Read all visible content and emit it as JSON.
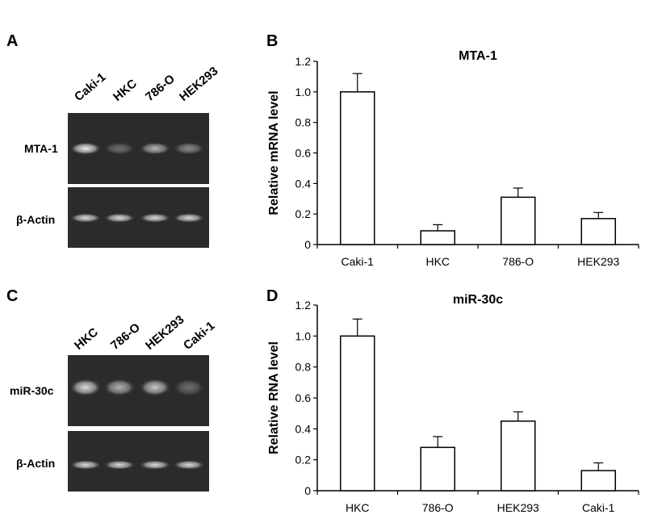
{
  "panels": {
    "A": {
      "letter": "A",
      "lanes": [
        "Caki-1",
        "HKC",
        "786-O",
        "HEK293"
      ],
      "gel_rows": [
        "MTA-1",
        "β-Actin"
      ]
    },
    "C": {
      "letter": "C",
      "lanes": [
        "HKC",
        "786-O",
        "HEK293",
        "Caki-1"
      ],
      "gel_rows": [
        "miR-30c",
        "β-Actin"
      ]
    },
    "B": {
      "letter": "B"
    },
    "D": {
      "letter": "D"
    }
  },
  "chart_data": [
    {
      "id": "B",
      "type": "bar",
      "title": "MTA-1",
      "ylabel": "Relative mRNA level",
      "xlabel": "",
      "categories": [
        "Caki-1",
        "HKC",
        "786-O",
        "HEK293"
      ],
      "values": [
        1.0,
        0.09,
        0.31,
        0.17
      ],
      "errors": [
        0.12,
        0.04,
        0.06,
        0.04
      ],
      "ylim": [
        0,
        1.2
      ],
      "yticks": [
        "0",
        "0.2",
        "0.4",
        "0.6",
        "0.8",
        "1.0",
        "1.2"
      ],
      "bar_color": "#ffffff",
      "grid": false
    },
    {
      "id": "D",
      "type": "bar",
      "title": "miR-30c",
      "ylabel": "Relative RNA level",
      "xlabel": "",
      "categories": [
        "HKC",
        "786-O",
        "HEK293",
        "Caki-1"
      ],
      "values": [
        1.0,
        0.28,
        0.45,
        0.13
      ],
      "errors": [
        0.11,
        0.07,
        0.06,
        0.05
      ],
      "ylim": [
        0,
        1.2
      ],
      "yticks": [
        "0",
        "0.2",
        "0.4",
        "0.6",
        "0.8",
        "1.0",
        "1.2"
      ],
      "bar_color": "#ffffff",
      "grid": false
    }
  ],
  "gel_intensity": {
    "A_target": [
      1.0,
      0.35,
      0.7,
      0.5
    ],
    "A_actin": [
      0.9,
      0.9,
      0.9,
      0.9
    ],
    "C_target": [
      0.9,
      0.7,
      0.8,
      0.35
    ],
    "C_actin": [
      0.9,
      0.9,
      0.9,
      0.9
    ]
  }
}
